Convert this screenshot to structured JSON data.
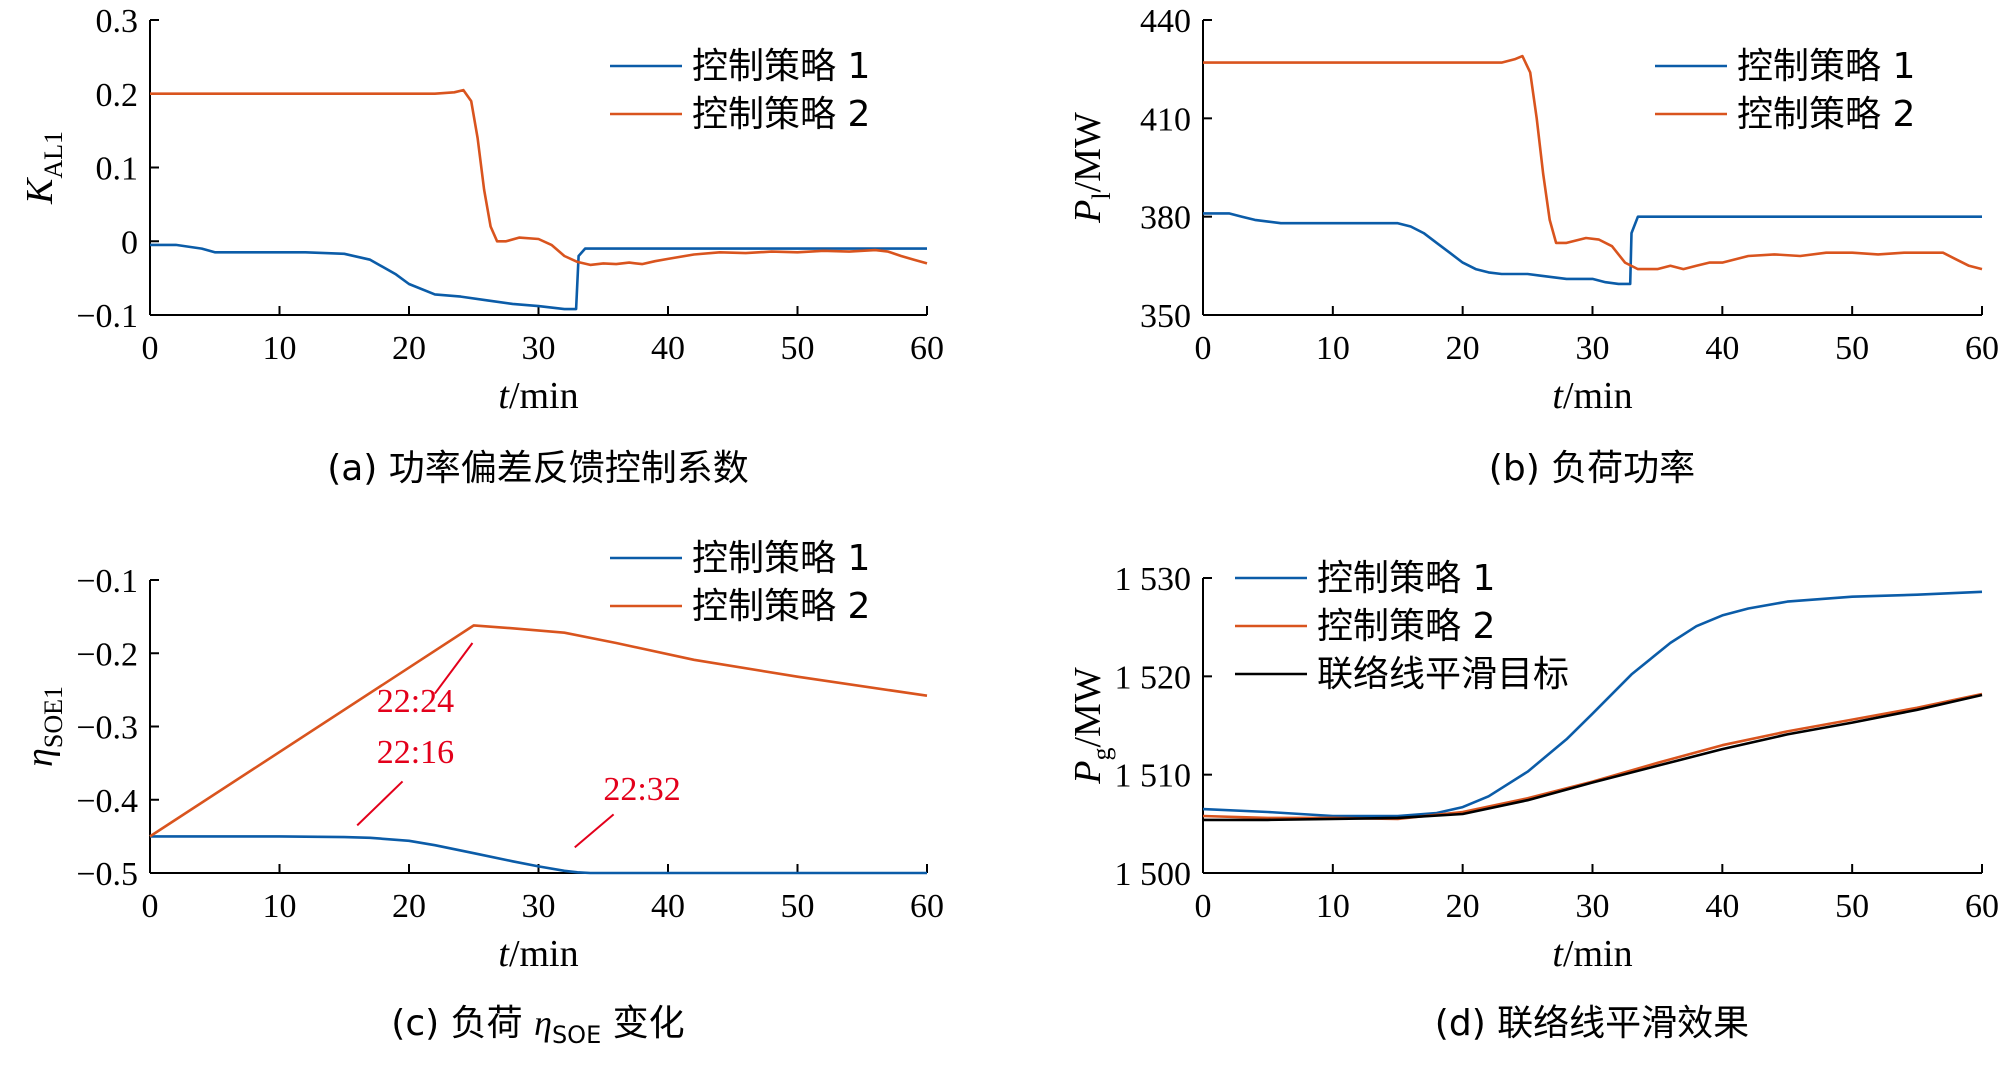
{
  "colors": {
    "series1": "#0b5ca8",
    "series2": "#d9541e",
    "series3": "#000000",
    "annotation": "#e3001b"
  },
  "chart_data": [
    {
      "id": "a",
      "type": "line",
      "caption": "(a)  功率偏差反馈控制系数",
      "ylabel_main": "K",
      "ylabel_sub": "AL1",
      "xlabel_main": "t",
      "xlabel_unit": "/min",
      "xlim": [
        0,
        60
      ],
      "ylim": [
        -0.1,
        0.3
      ],
      "xticks": [
        0,
        10,
        20,
        30,
        40,
        50,
        60
      ],
      "xtick_labels": [
        "0",
        "10",
        "20",
        "30",
        "40",
        "50",
        "60"
      ],
      "yticks": [
        -0.1,
        0,
        0.1,
        0.2,
        0.3
      ],
      "ytick_labels": [
        "−0.1",
        "0",
        "0.1",
        "0.2",
        "0.3"
      ],
      "legend_position": "top-right",
      "series": [
        {
          "name": "控制策略 1",
          "color": "#0b5ca8",
          "x": [
            0,
            2,
            4,
            5,
            8,
            12,
            15,
            17,
            19,
            20,
            22,
            24,
            26,
            28,
            30,
            32,
            32.9,
            33.1,
            33.6,
            60
          ],
          "y": [
            -0.005,
            -0.005,
            -0.01,
            -0.015,
            -0.015,
            -0.015,
            -0.017,
            -0.025,
            -0.045,
            -0.058,
            -0.072,
            -0.075,
            -0.08,
            -0.085,
            -0.088,
            -0.092,
            -0.092,
            -0.02,
            -0.01,
            -0.01
          ]
        },
        {
          "name": "控制策略 2",
          "color": "#d9541e",
          "x": [
            0,
            5,
            10,
            15,
            20,
            22,
            23.5,
            24.2,
            24.8,
            25.3,
            25.8,
            26.3,
            26.8,
            27.5,
            28.5,
            30,
            31,
            32,
            33,
            34,
            35,
            36,
            37,
            38,
            39,
            40,
            42,
            44,
            46,
            48,
            50,
            52,
            54,
            56,
            57,
            58,
            59,
            60
          ],
          "y": [
            0.2,
            0.2,
            0.2,
            0.2,
            0.2,
            0.2,
            0.202,
            0.205,
            0.19,
            0.14,
            0.07,
            0.02,
            0.0,
            0.0,
            0.005,
            0.003,
            -0.005,
            -0.02,
            -0.028,
            -0.032,
            -0.03,
            -0.031,
            -0.029,
            -0.031,
            -0.027,
            -0.024,
            -0.018,
            -0.015,
            -0.016,
            -0.014,
            -0.015,
            -0.013,
            -0.014,
            -0.012,
            -0.014,
            -0.02,
            -0.025,
            -0.03
          ]
        }
      ]
    },
    {
      "id": "b",
      "type": "line",
      "caption": "(b)  负荷功率",
      "ylabel_main": "P",
      "ylabel_sub": "l",
      "ylabel_unit": "/MW",
      "xlabel_main": "t",
      "xlabel_unit": "/min",
      "xlim": [
        0,
        60
      ],
      "ylim": [
        350,
        440
      ],
      "xticks": [
        0,
        10,
        20,
        30,
        40,
        50,
        60
      ],
      "xtick_labels": [
        "0",
        "10",
        "20",
        "30",
        "40",
        "50",
        "60"
      ],
      "yticks": [
        350,
        380,
        410,
        440
      ],
      "ytick_labels": [
        "350",
        "380",
        "410",
        "440"
      ],
      "legend_position": "top-right",
      "series": [
        {
          "name": "控制策略 1",
          "color": "#0b5ca8",
          "x": [
            0,
            2,
            3,
            4,
            5,
            6,
            10,
            15,
            16,
            17,
            18,
            19,
            20,
            21,
            22,
            23,
            25,
            26,
            28,
            30,
            31,
            32,
            32.9,
            33,
            33.5,
            60
          ],
          "y": [
            381,
            381,
            380,
            379,
            378.5,
            378,
            378,
            378,
            377,
            375,
            372,
            369,
            366,
            364,
            363,
            362.5,
            362.5,
            362,
            361,
            361,
            360,
            359.5,
            359.5,
            375,
            380,
            380
          ]
        },
        {
          "name": "控制策略 2",
          "color": "#d9541e",
          "x": [
            0,
            5,
            10,
            15,
            20,
            22,
            23,
            24,
            24.6,
            25.2,
            25.7,
            26.2,
            26.7,
            27.2,
            28,
            29.5,
            30.5,
            31.5,
            32.5,
            33.5,
            35,
            36,
            37,
            38,
            39,
            40,
            42,
            44,
            46,
            48,
            50,
            52,
            54,
            56,
            57,
            58,
            59,
            60
          ],
          "y": [
            427,
            427,
            427,
            427,
            427,
            427,
            427,
            428,
            429,
            424,
            410,
            393,
            379,
            372,
            372,
            373.5,
            373,
            371,
            366,
            364,
            364,
            365,
            364,
            365,
            366,
            366,
            368,
            368.5,
            368,
            369,
            369,
            368.5,
            369,
            369,
            369,
            367,
            365,
            364
          ]
        }
      ]
    },
    {
      "id": "c",
      "type": "line",
      "caption_prefix": "(c)  负荷 ",
      "caption_symbol": "η",
      "caption_sub": "SOE",
      "caption_suffix": " 变化",
      "ylabel_main": "η",
      "ylabel_sub": "SOE1",
      "xlabel_main": "t",
      "xlabel_unit": "/min",
      "xlim": [
        0,
        60
      ],
      "ylim": [
        -0.5,
        -0.1
      ],
      "xticks": [
        0,
        10,
        20,
        30,
        40,
        50,
        60
      ],
      "xtick_labels": [
        "0",
        "10",
        "20",
        "30",
        "40",
        "50",
        "60"
      ],
      "yticks": [
        -0.5,
        -0.4,
        -0.3,
        -0.2,
        -0.1
      ],
      "ytick_labels": [
        "−0.5",
        "−0.4",
        "−0.3",
        "−0.2",
        "−0.1"
      ],
      "legend_position": "top-right",
      "series": [
        {
          "name": "控制策略 1",
          "color": "#0b5ca8",
          "x": [
            0,
            5,
            10,
            15,
            17,
            20,
            22,
            25,
            28,
            30,
            32,
            33,
            34,
            40,
            60
          ],
          "y": [
            -0.45,
            -0.45,
            -0.45,
            -0.451,
            -0.452,
            -0.456,
            -0.462,
            -0.473,
            -0.484,
            -0.491,
            -0.497,
            -0.499,
            -0.5,
            -0.5,
            -0.5
          ]
        },
        {
          "name": "控制策略 2",
          "color": "#d9541e",
          "x": [
            0,
            25,
            28,
            32,
            36,
            42,
            50,
            60
          ],
          "y": [
            -0.45,
            -0.162,
            -0.166,
            -0.172,
            -0.186,
            -0.209,
            -0.232,
            -0.258
          ]
        }
      ],
      "annotations": [
        {
          "text": "22:24",
          "x": 20.5,
          "y": -0.28,
          "line": [
            [
              22,
              -0.255
            ],
            [
              24.9,
              -0.186
            ]
          ]
        },
        {
          "text": "22:16",
          "x": 20.5,
          "y": -0.35,
          "line": [
            [
              16,
              -0.435
            ],
            [
              19.5,
              -0.375
            ]
          ]
        },
        {
          "text": "22:32",
          "x": 38,
          "y": -0.4,
          "line": [
            [
              32.8,
              -0.465
            ],
            [
              35.8,
              -0.42
            ]
          ]
        }
      ]
    },
    {
      "id": "d",
      "type": "line",
      "caption": "(d)  联络线平滑效果",
      "ylabel_main": "P",
      "ylabel_sub": "g",
      "ylabel_unit": "/MW",
      "xlabel_main": "t",
      "xlabel_unit": "/min",
      "xlim": [
        0,
        60
      ],
      "ylim": [
        1500,
        1530
      ],
      "xticks": [
        0,
        10,
        20,
        30,
        40,
        50,
        60
      ],
      "xtick_labels": [
        "0",
        "10",
        "20",
        "30",
        "40",
        "50",
        "60"
      ],
      "yticks": [
        1500,
        1510,
        1520,
        1530
      ],
      "ytick_labels": [
        "1 500",
        "1 510",
        "1 520",
        "1 530"
      ],
      "legend_position": "top-left",
      "series": [
        {
          "name": "控制策略 1",
          "color": "#0b5ca8",
          "x": [
            0,
            5,
            10,
            15,
            18,
            20,
            22,
            25,
            28,
            30,
            33,
            36,
            38,
            40,
            42,
            45,
            50,
            55,
            60
          ],
          "y": [
            1506.5,
            1506.2,
            1505.8,
            1505.8,
            1506.1,
            1506.7,
            1507.8,
            1510.3,
            1513.6,
            1516.2,
            1520.2,
            1523.4,
            1525.1,
            1526.2,
            1526.9,
            1527.6,
            1528.1,
            1528.3,
            1528.6
          ]
        },
        {
          "name": "控制策略 2",
          "color": "#d9541e",
          "x": [
            0,
            5,
            10,
            15,
            20,
            25,
            30,
            35,
            40,
            45,
            50,
            55,
            60
          ],
          "y": [
            1505.8,
            1505.6,
            1505.6,
            1505.5,
            1506.2,
            1507.6,
            1509.3,
            1511.2,
            1513.0,
            1514.4,
            1515.6,
            1516.8,
            1518.2
          ]
        },
        {
          "name": "联络线平滑目标",
          "color": "#000000",
          "x": [
            0,
            5,
            10,
            15,
            20,
            25,
            30,
            35,
            40,
            45,
            50,
            55,
            60
          ],
          "y": [
            1505.4,
            1505.4,
            1505.5,
            1505.6,
            1506.0,
            1507.4,
            1509.2,
            1510.9,
            1512.6,
            1514.1,
            1515.3,
            1516.6,
            1518.1
          ]
        }
      ]
    }
  ]
}
